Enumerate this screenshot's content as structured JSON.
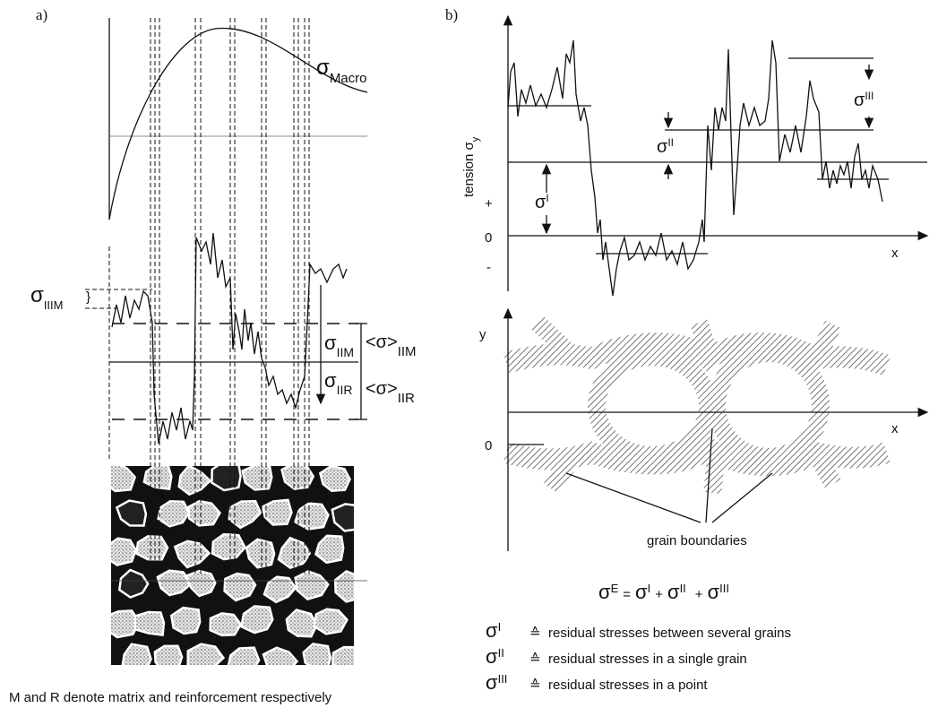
{
  "panel_a": {
    "label": "a)",
    "sigma_macro": {
      "symbol": "σ",
      "sub": "Macro"
    },
    "sigma_iiim": {
      "symbol": "σ",
      "sub": "IIIM"
    },
    "sigma_iim": {
      "symbol": "σ",
      "sub": "IIM"
    },
    "mean_iim": {
      "symbol": "<σ>",
      "sub": "IIM"
    },
    "sigma_iir": {
      "symbol": "σ",
      "sub": "IIR"
    },
    "mean_iir": {
      "symbol": "<σ>",
      "sub": "IIR"
    },
    "caption": "M and R denote matrix and reinforcement respectively"
  },
  "panel_b": {
    "label": "b)",
    "y_axis_label": {
      "text": "tension σ",
      "sub": "y"
    },
    "plus": "+",
    "zero": "0",
    "minus": "-",
    "x_label": "x",
    "sigma_i": {
      "symbol": "σ",
      "sup": "I"
    },
    "sigma_ii": {
      "symbol": "σ",
      "sup": "II"
    },
    "sigma_iii": {
      "symbol": "σ",
      "sup": "III"
    },
    "grain_y_label": "y",
    "grain_zero": "0",
    "grain_x_label": "x",
    "grain_boundaries": "grain boundaries",
    "equation": {
      "lhs": {
        "symbol": "σ",
        "sup": "E"
      },
      "equals": "=",
      "plus": "+",
      "terms": [
        {
          "symbol": "σ",
          "sup": "I"
        },
        {
          "symbol": "σ",
          "sup": "II"
        },
        {
          "symbol": "σ",
          "sup": "III"
        }
      ]
    },
    "legend": [
      {
        "symbol": "σ",
        "sup": "I",
        "relation": "≙",
        "text": "residual stresses between several grains"
      },
      {
        "symbol": "σ",
        "sup": "II",
        "relation": "≙",
        "text": "residual stresses in a single grain"
      },
      {
        "symbol": "σ",
        "sup": "III",
        "relation": "≙",
        "text": "residual stresses in a point"
      }
    ]
  }
}
